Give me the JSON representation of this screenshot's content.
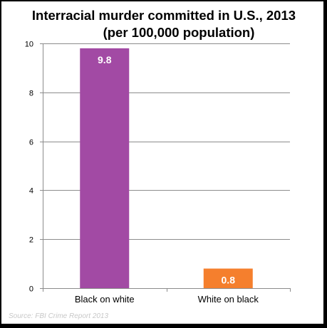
{
  "chart_data": {
    "type": "bar",
    "title_lines": [
      "Interracial murder committed in U.S., 2013",
      "(per 100,000 population)"
    ],
    "categories": [
      "Black on white",
      "White on black"
    ],
    "values": [
      9.8,
      0.8
    ],
    "data_labels": [
      "9.8",
      "0.8"
    ],
    "bar_colors": [
      "#a24aa4",
      "#f57f2d"
    ],
    "ylim": [
      0,
      10
    ],
    "yticks": [
      "0",
      "2",
      "4",
      "6",
      "8",
      "10"
    ],
    "grid": true,
    "legend": "none"
  },
  "source": "Source: FBI Crime Report 2013"
}
